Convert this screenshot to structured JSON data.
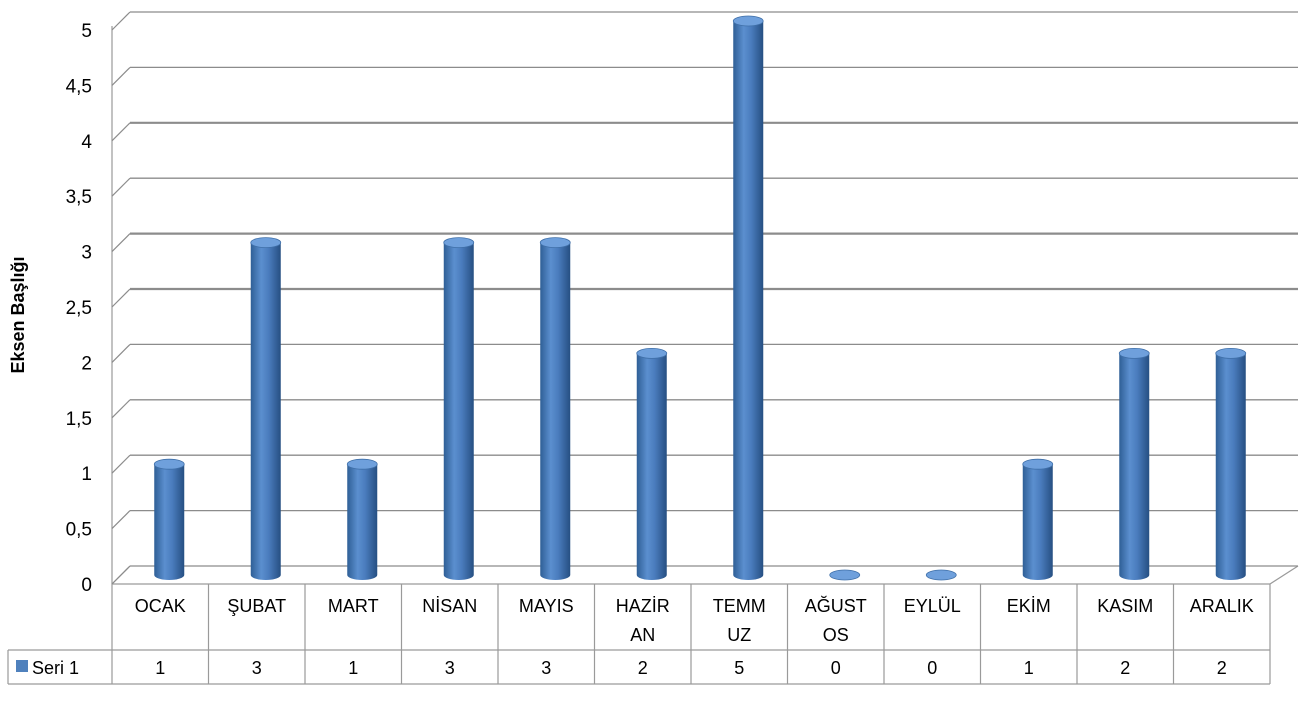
{
  "chart_data": {
    "type": "bar",
    "style": "3d-cylinder",
    "ylabel": "Eksen Başlığı",
    "xlabel": "",
    "title": "",
    "ylim": [
      0,
      5
    ],
    "ystep": 0.5,
    "y_tick_labels": [
      "0",
      "0,5",
      "1",
      "1,5",
      "2",
      "2,5",
      "3",
      "3,5",
      "4",
      "4,5",
      "5"
    ],
    "categories": [
      [
        "OCAK"
      ],
      [
        "ŞUBAT"
      ],
      [
        "MART"
      ],
      [
        "NİSAN"
      ],
      [
        "MAYIS"
      ],
      [
        "HAZİR",
        "AN"
      ],
      [
        "TEMM",
        "UZ"
      ],
      [
        "AĞUST",
        "OS"
      ],
      [
        "EYLÜL"
      ],
      [
        "EKİM"
      ],
      [
        "KASIM"
      ],
      [
        "ARALIK"
      ]
    ],
    "series": [
      {
        "name": "Seri 1",
        "values": [
          1,
          3,
          1,
          3,
          3,
          2,
          5,
          0,
          0,
          1,
          2,
          2
        ],
        "color": "#4f81bd"
      }
    ],
    "legend": "data-table",
    "grid": true
  }
}
